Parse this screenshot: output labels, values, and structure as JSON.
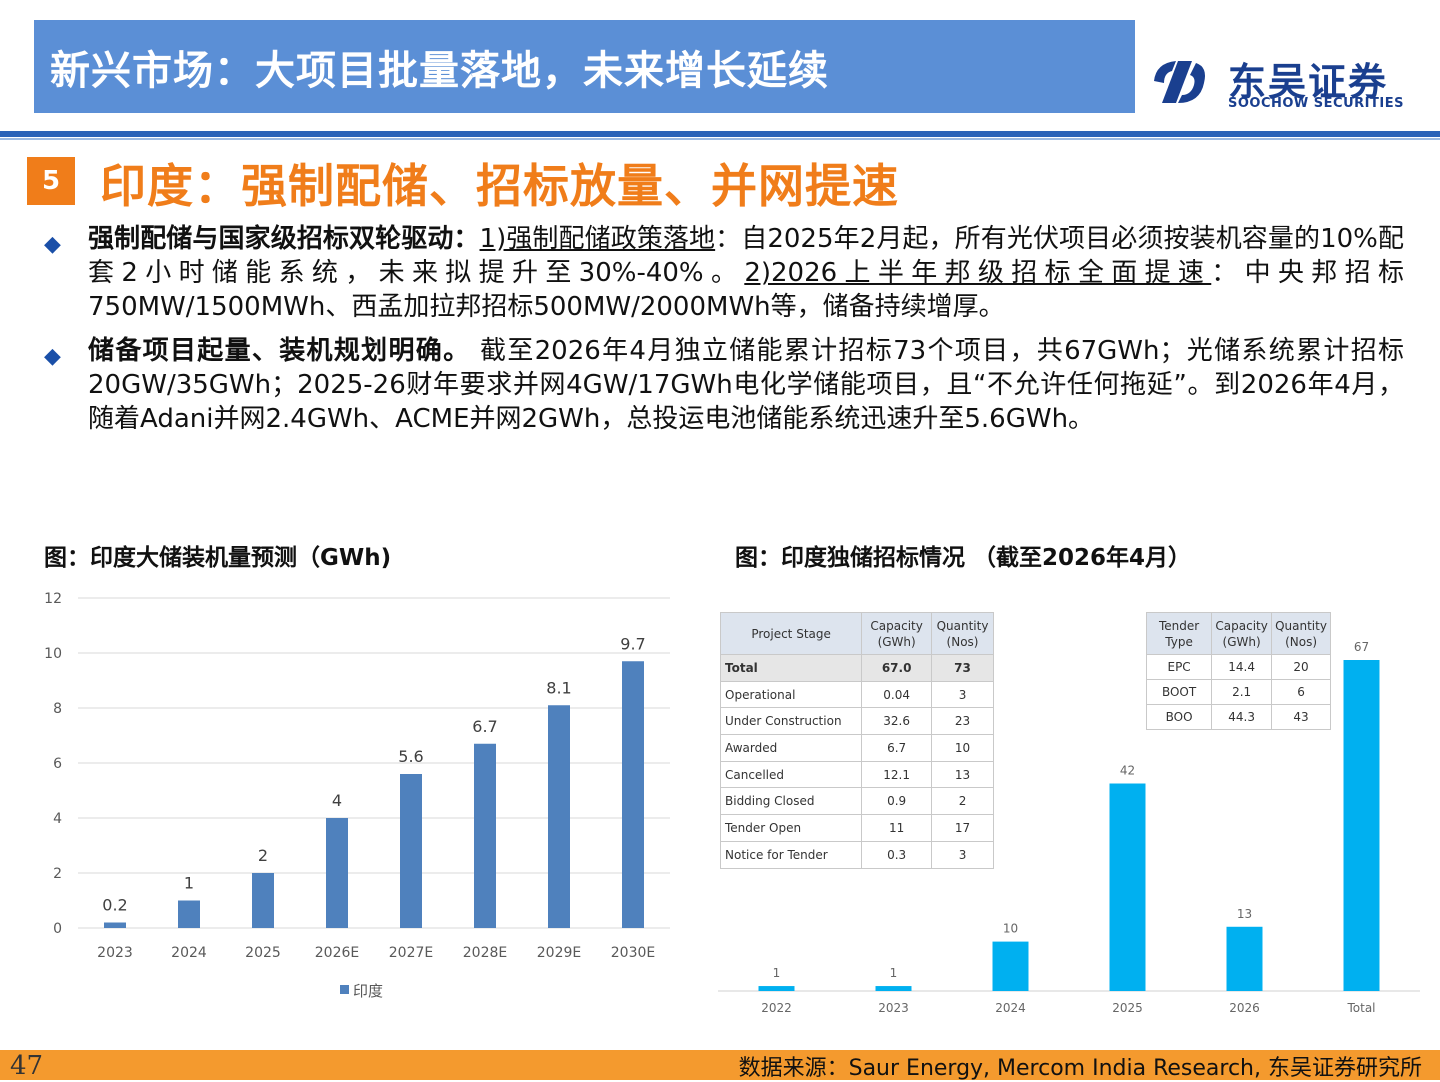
{
  "header": {
    "title": "新兴市场：大项目批量落地，未来增长延续"
  },
  "logo": {
    "cn": "东吴证券",
    "en": "SOOCHOW SECURITIES"
  },
  "section": {
    "number": "5",
    "title": "印度：强制配储、招标放量、并网提速"
  },
  "bullets": [
    {
      "bold": "强制配储与国家级招标双轮驱动：",
      "u1": "1)强制配储政策落地",
      "t1": "：自2025年2月起，所有光伏项目必须按装机容量的10%配套2小时储能系统，未来拟提升至30%-40%。",
      "u2": "2)2026上半年邦级招标全面提速",
      "t2": "：中央邦招标750MW/1500MWh、西孟加拉邦招标500MW/2000MWh等，储备持续增厚。"
    },
    {
      "bold": "储备项目起量、装机规划明确。",
      "t1": "截至2026年4月独立储能累计招标73个项目，共67GWh；光储系统累计招标20GW/35GWh；2025-26财年要求并网4GW/17GWh电化学储能项目，且“不允许任何拖延”。到2026年4月，随着Adani并网2.4GWh、ACME并网2GWh，总投运电池储能系统迅速升至5.6GWh。"
    }
  ],
  "fig_left_title": "图：印度大储装机量预测（GWh)",
  "fig_right_title": "图：印度独储招标情况 （截至2026年4月）",
  "chart_data": [
    {
      "type": "bar",
      "title": "",
      "categories": [
        "2023",
        "2024",
        "2025",
        "2026E",
        "2027E",
        "2028E",
        "2029E",
        "2030E"
      ],
      "series": [
        {
          "name": "印度",
          "values": [
            0.2,
            1,
            2,
            4,
            5.6,
            6.7,
            8.1,
            9.7
          ]
        }
      ],
      "data_labels": [
        "0.2",
        "1",
        "2",
        "4",
        "5.6",
        "6.7",
        "8.1",
        "9.7"
      ],
      "yticks": [
        "0",
        "2",
        "4",
        "6",
        "8",
        "10",
        "12"
      ],
      "ylim": [
        0,
        12
      ],
      "grid": true,
      "legend": "bottom",
      "color": "#4f81bd"
    },
    {
      "type": "bar",
      "title": "",
      "categories": [
        "2022",
        "2023",
        "2024",
        "2025",
        "2026",
        "Total"
      ],
      "values": [
        1,
        1,
        10,
        42,
        13,
        67
      ],
      "data_labels": [
        "1",
        "1",
        "10",
        "42",
        "13",
        "67"
      ],
      "ylim": [
        0,
        80
      ],
      "color": "#00b0f0"
    }
  ],
  "table_stage": {
    "headers": [
      "Project Stage",
      "Capacity (GWh)",
      "Quantity (Nos)"
    ],
    "rows": [
      [
        "Total",
        "67.0",
        "73"
      ],
      [
        "Operational",
        "0.04",
        "3"
      ],
      [
        "Under Construction",
        "32.6",
        "23"
      ],
      [
        "Awarded",
        "6.7",
        "10"
      ],
      [
        "Cancelled",
        "12.1",
        "13"
      ],
      [
        "Bidding Closed",
        "0.9",
        "2"
      ],
      [
        "Tender Open",
        "11",
        "17"
      ],
      [
        "Notice for Tender",
        "0.3",
        "3"
      ]
    ]
  },
  "table_tender": {
    "headers": [
      "Tender Type",
      "Capacity (GWh)",
      "Quantity (Nos)"
    ],
    "rows": [
      [
        "EPC",
        "14.4",
        "20"
      ],
      [
        "BOOT",
        "2.1",
        "6"
      ],
      [
        "BOO",
        "44.3",
        "43"
      ]
    ]
  },
  "footer": {
    "page": "47",
    "source": "数据来源：Saur Energy, Mercom India Research, 东吴证券研究所"
  }
}
